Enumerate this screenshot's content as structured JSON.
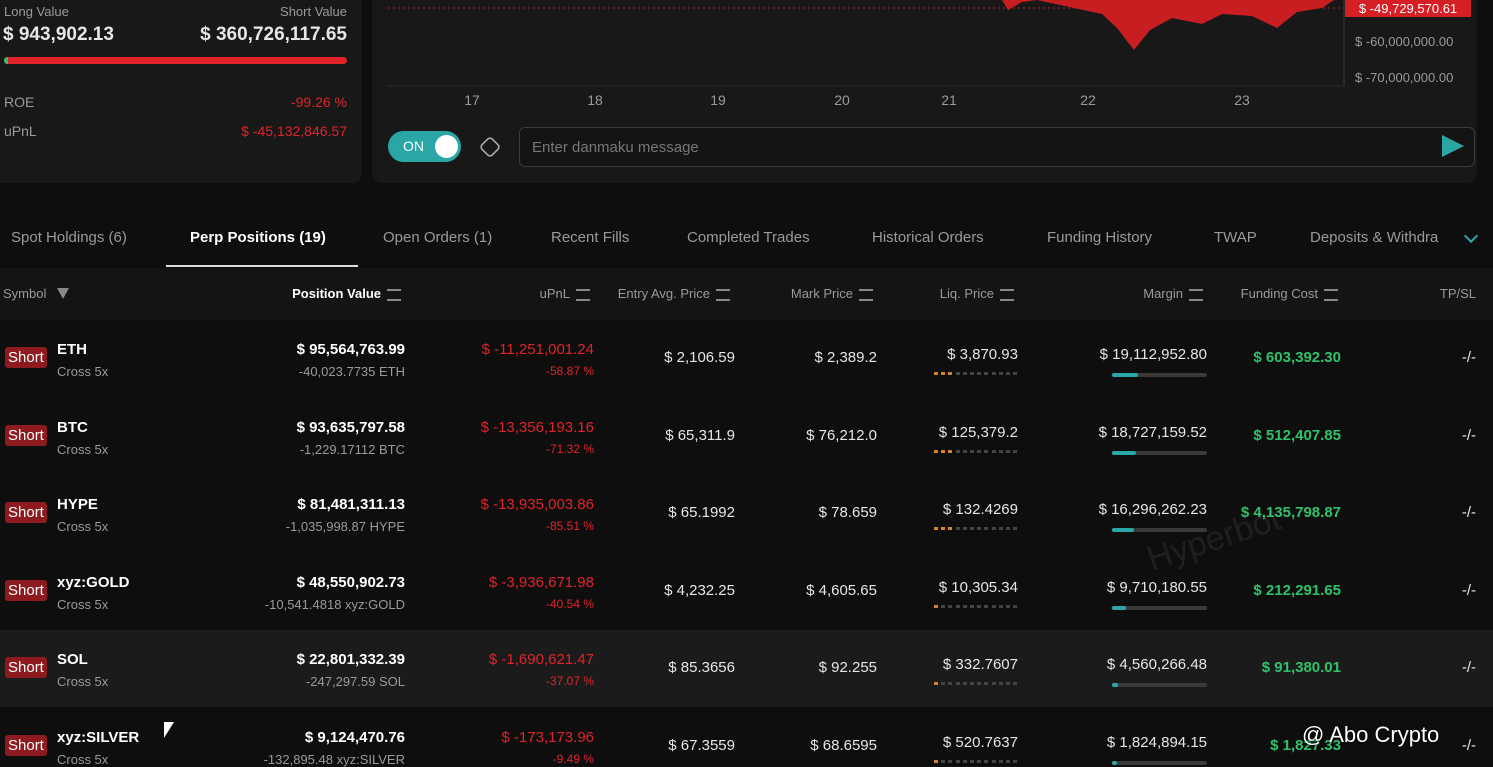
{
  "summary": {
    "long_label": "Long Value",
    "long_value": "$ 943,902.13",
    "short_label": "Short Value",
    "short_value": "$ 360,726,117.65",
    "roe_label": "ROE",
    "roe": "-99.26 %",
    "upnl_label": "uPnL",
    "upnl": "$ -45,132,846.57"
  },
  "chart": {
    "current_label": "$ -49,729,570.61",
    "y_labels": [
      "$ -60,000,000.00",
      "$ -70,000,000.00"
    ],
    "x_labels": [
      "17",
      "18",
      "19",
      "20",
      "21",
      "22",
      "23"
    ]
  },
  "controls": {
    "toggle": "ON",
    "input_placeholder": "Enter danmaku message"
  },
  "tabs": [
    "Spot Holdings (6)",
    "Perp Positions (19)",
    "Open Orders (1)",
    "Recent Fills",
    "Completed Trades",
    "Historical Orders",
    "Funding History",
    "TWAP",
    "Deposits & Withdra"
  ],
  "table": {
    "headers": [
      "Symbol",
      "Position Value",
      "uPnL",
      "Entry Avg. Price",
      "Mark Price",
      "Liq. Price",
      "Margin",
      "Funding Cost",
      "TP/SL"
    ],
    "rows": [
      {
        "side": "Short",
        "symbol": "ETH",
        "mode": "Cross 5x",
        "position_value": "$ 95,564,763.99",
        "size": "-40,023.7735 ETH",
        "upnl": "$ -11,251,001.24",
        "upnl_pct": "-58.87 %",
        "entry": "$ 2,106.59",
        "mark": "$ 2,389.2",
        "liq": "$ 3,870.93",
        "margin": "$ 19,112,952.80",
        "funding": "$ 603,392.30",
        "tpsl": "-/-"
      },
      {
        "side": "Short",
        "symbol": "BTC",
        "mode": "Cross 5x",
        "position_value": "$ 93,635,797.58",
        "size": "-1,229.17112 BTC",
        "upnl": "$ -13,356,193.16",
        "upnl_pct": "-71.32 %",
        "entry": "$ 65,311.9",
        "mark": "$ 76,212.0",
        "liq": "$ 125,379.2",
        "margin": "$ 18,727,159.52",
        "funding": "$ 512,407.85",
        "tpsl": "-/-"
      },
      {
        "side": "Short",
        "symbol": "HYPE",
        "mode": "Cross 5x",
        "position_value": "$ 81,481,311.13",
        "size": "-1,035,998.87 HYPE",
        "upnl": "$ -13,935,003.86",
        "upnl_pct": "-85.51 %",
        "entry": "$ 65.1992",
        "mark": "$ 78.659",
        "liq": "$ 132.4269",
        "margin": "$ 16,296,262.23",
        "funding": "$ 4,135,798.87",
        "tpsl": "-/-"
      },
      {
        "side": "Short",
        "symbol": "xyz:GOLD",
        "mode": "Cross 5x",
        "position_value": "$ 48,550,902.73",
        "size": "-10,541.4818 xyz:GOLD",
        "upnl": "$ -3,936,671.98",
        "upnl_pct": "-40.54 %",
        "entry": "$ 4,232.25",
        "mark": "$ 4,605.65",
        "liq": "$ 10,305.34",
        "margin": "$ 9,710,180.55",
        "funding": "$ 212,291.65",
        "tpsl": "-/-"
      },
      {
        "side": "Short",
        "symbol": "SOL",
        "mode": "Cross 5x",
        "position_value": "$ 22,801,332.39",
        "size": "-247,297.59 SOL",
        "upnl": "$ -1,690,621.47",
        "upnl_pct": "-37.07 %",
        "entry": "$ 85.3656",
        "mark": "$ 92.255",
        "liq": "$ 332.7607",
        "margin": "$ 4,560,266.48",
        "funding": "$ 91,380.01",
        "tpsl": "-/-"
      },
      {
        "side": "Short",
        "symbol": "xyz:SILVER",
        "mode": "Cross 5x",
        "position_value": "$ 9,124,470.76",
        "size": "-132,895.48 xyz:SILVER",
        "upnl": "$ -173,173.96",
        "upnl_pct": "-9.49 %",
        "entry": "$ 67.3559",
        "mark": "$ 68.6595",
        "liq": "$ 520.7637",
        "margin": "$ 1,824,894.15",
        "funding": "$ 1,827.33",
        "tpsl": "-/-"
      }
    ]
  },
  "watermarks": {
    "brand": "Hyperbot",
    "credit": "@ Abo Crypto"
  }
}
